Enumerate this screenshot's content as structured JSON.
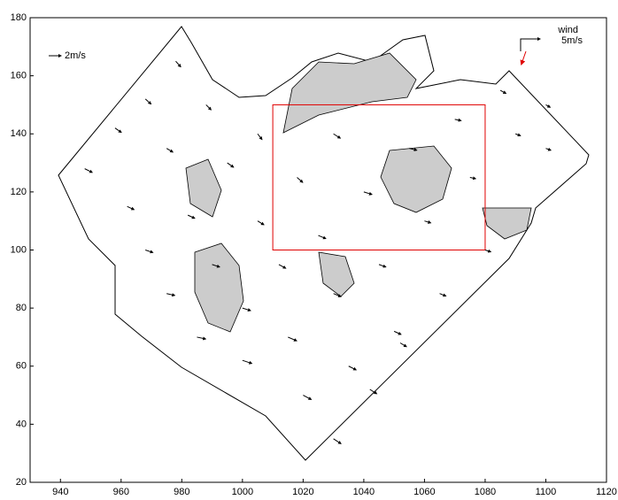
{
  "chart_data": {
    "type": "quiver",
    "xlim": [
      930,
      1120
    ],
    "ylim": [
      20,
      180
    ],
    "xticks": [
      940,
      960,
      980,
      1000,
      1020,
      1040,
      1060,
      1080,
      1100,
      1120
    ],
    "yticks": [
      20,
      40,
      60,
      80,
      100,
      120,
      140,
      160,
      180
    ],
    "color": "#000000",
    "x": [
      948,
      958,
      968,
      978,
      962,
      975,
      988,
      968,
      982,
      995,
      1005,
      975,
      990,
      1005,
      1018,
      1030,
      985,
      1000,
      1012,
      1025,
      1040,
      1055,
      1070,
      1000,
      1015,
      1030,
      1045,
      1060,
      1075,
      1090,
      1100,
      1020,
      1035,
      1050,
      1065,
      1080,
      1030,
      1042,
      1052,
      1100,
      1085
    ],
    "y": [
      128,
      142,
      152,
      165,
      115,
      135,
      150,
      100,
      112,
      130,
      140,
      85,
      95,
      110,
      125,
      140,
      70,
      80,
      95,
      105,
      120,
      135,
      145,
      62,
      70,
      85,
      95,
      110,
      125,
      140,
      150,
      50,
      60,
      72,
      85,
      100,
      35,
      52,
      68,
      135,
      155
    ],
    "u": [
      1.2,
      1.0,
      0.9,
      0.8,
      1.1,
      1.0,
      0.8,
      1.2,
      1.1,
      1.0,
      0.7,
      1.3,
      1.2,
      1.0,
      0.9,
      1.1,
      1.4,
      1.3,
      1.1,
      1.2,
      1.3,
      1.2,
      1.0,
      1.5,
      1.4,
      1.2,
      1.1,
      1.0,
      0.9,
      0.8,
      0.7,
      1.3,
      1.2,
      1.1,
      1.0,
      0.9,
      1.2,
      1.1,
      1.0,
      0.8,
      0.9
    ],
    "v": [
      -0.6,
      -0.7,
      -0.8,
      -0.9,
      -0.5,
      -0.6,
      -0.8,
      -0.4,
      -0.5,
      -0.7,
      -0.9,
      -0.3,
      -0.4,
      -0.6,
      -0.8,
      -0.7,
      -0.3,
      -0.4,
      -0.6,
      -0.5,
      -0.4,
      -0.3,
      -0.2,
      -0.5,
      -0.6,
      -0.5,
      -0.4,
      -0.3,
      -0.2,
      -0.3,
      -0.4,
      -0.7,
      -0.6,
      -0.5,
      -0.4,
      -0.3,
      -0.8,
      -0.7,
      -0.6,
      -0.3,
      -0.5
    ],
    "reference": {
      "label": "2m/s",
      "value": 2
    },
    "wind": {
      "label": "wind",
      "speed_label": "5m/s",
      "speed": 5,
      "color": "#e00000"
    },
    "highlight_box": {
      "x": [
        1010,
        1080
      ],
      "y": [
        100,
        150
      ],
      "color": "#e00000"
    }
  }
}
